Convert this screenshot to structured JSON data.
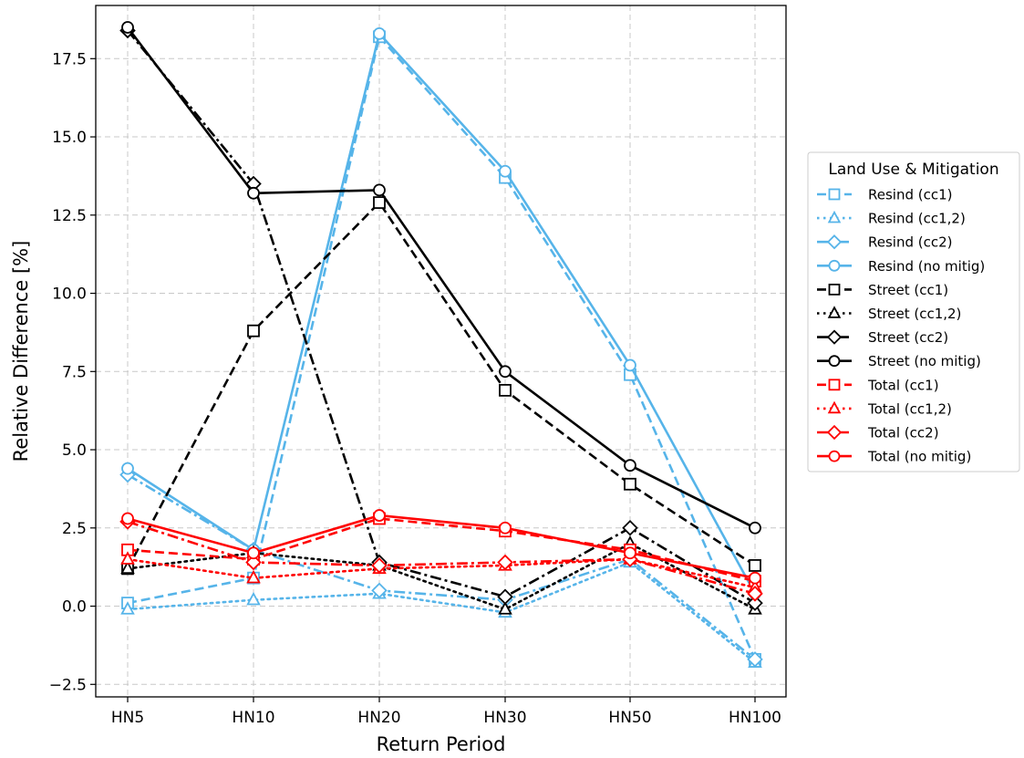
{
  "chart_data": {
    "type": "line",
    "title": "",
    "xlabel": "Return Period",
    "ylabel": "Relative Difference [%]",
    "categories": [
      "HN5",
      "HN10",
      "HN20",
      "HN30",
      "HN50",
      "HN100"
    ],
    "ylim": [
      -2.9,
      19.2
    ],
    "yticks": [
      -2.5,
      0.0,
      2.5,
      5.0,
      7.5,
      10.0,
      12.5,
      15.0,
      17.5
    ],
    "ytick_labels": [
      "−2.5",
      "0.0",
      "2.5",
      "5.0",
      "7.5",
      "10.0",
      "12.5",
      "15.0",
      "17.5"
    ],
    "grid": true,
    "legend": {
      "title": "Land Use & Mitigation",
      "placement": "outside-right"
    },
    "series": [
      {
        "name": "Resind (cc1)",
        "color": "#56B4E9",
        "dash": "dashed",
        "marker": "square",
        "values": [
          0.1,
          0.9,
          18.2,
          13.7,
          7.4,
          -1.7
        ]
      },
      {
        "name": "Resind (cc1,2)",
        "color": "#56B4E9",
        "dash": "dotted",
        "marker": "triangle",
        "values": [
          -0.1,
          0.2,
          0.4,
          -0.2,
          1.4,
          -1.8
        ]
      },
      {
        "name": "Resind (cc2)",
        "color": "#56B4E9",
        "dash": "dashdot",
        "marker": "diamond",
        "values": [
          4.2,
          1.8,
          0.5,
          0.2,
          1.5,
          -1.7
        ]
      },
      {
        "name": "Resind (no mitig)",
        "color": "#56B4E9",
        "dash": "solid",
        "marker": "circle",
        "values": [
          4.4,
          1.8,
          18.3,
          13.9,
          7.7,
          0.4
        ]
      },
      {
        "name": "Street (cc1)",
        "color": "#000000",
        "dash": "dashed",
        "marker": "square",
        "values": [
          1.2,
          8.8,
          12.9,
          6.9,
          3.9,
          1.3
        ]
      },
      {
        "name": "Street (cc1,2)",
        "color": "#000000",
        "dash": "dotted",
        "marker": "triangle",
        "values": [
          1.2,
          1.7,
          1.3,
          -0.1,
          2.0,
          -0.1
        ]
      },
      {
        "name": "Street (cc2)",
        "color": "#000000",
        "dash": "dashdot",
        "marker": "diamond",
        "values": [
          18.4,
          13.5,
          1.4,
          0.3,
          2.5,
          0.1
        ]
      },
      {
        "name": "Street (no mitig)",
        "color": "#000000",
        "dash": "solid",
        "marker": "circle",
        "values": [
          18.5,
          13.2,
          13.3,
          7.5,
          4.5,
          2.5
        ]
      },
      {
        "name": "Total (cc1)",
        "color": "#FF0000",
        "dash": "dashed",
        "marker": "square",
        "values": [
          1.8,
          1.5,
          2.8,
          2.4,
          1.8,
          0.8
        ]
      },
      {
        "name": "Total (cc1,2)",
        "color": "#FF0000",
        "dash": "dotted",
        "marker": "triangle",
        "values": [
          1.5,
          0.9,
          1.2,
          1.3,
          1.5,
          0.6
        ]
      },
      {
        "name": "Total (cc2)",
        "color": "#FF0000",
        "dash": "dashdot",
        "marker": "diamond",
        "values": [
          2.7,
          1.4,
          1.3,
          1.4,
          1.5,
          0.4
        ]
      },
      {
        "name": "Total (no mitig)",
        "color": "#FF0000",
        "dash": "solid",
        "marker": "circle",
        "values": [
          2.8,
          1.7,
          2.9,
          2.5,
          1.7,
          0.9
        ]
      }
    ]
  }
}
